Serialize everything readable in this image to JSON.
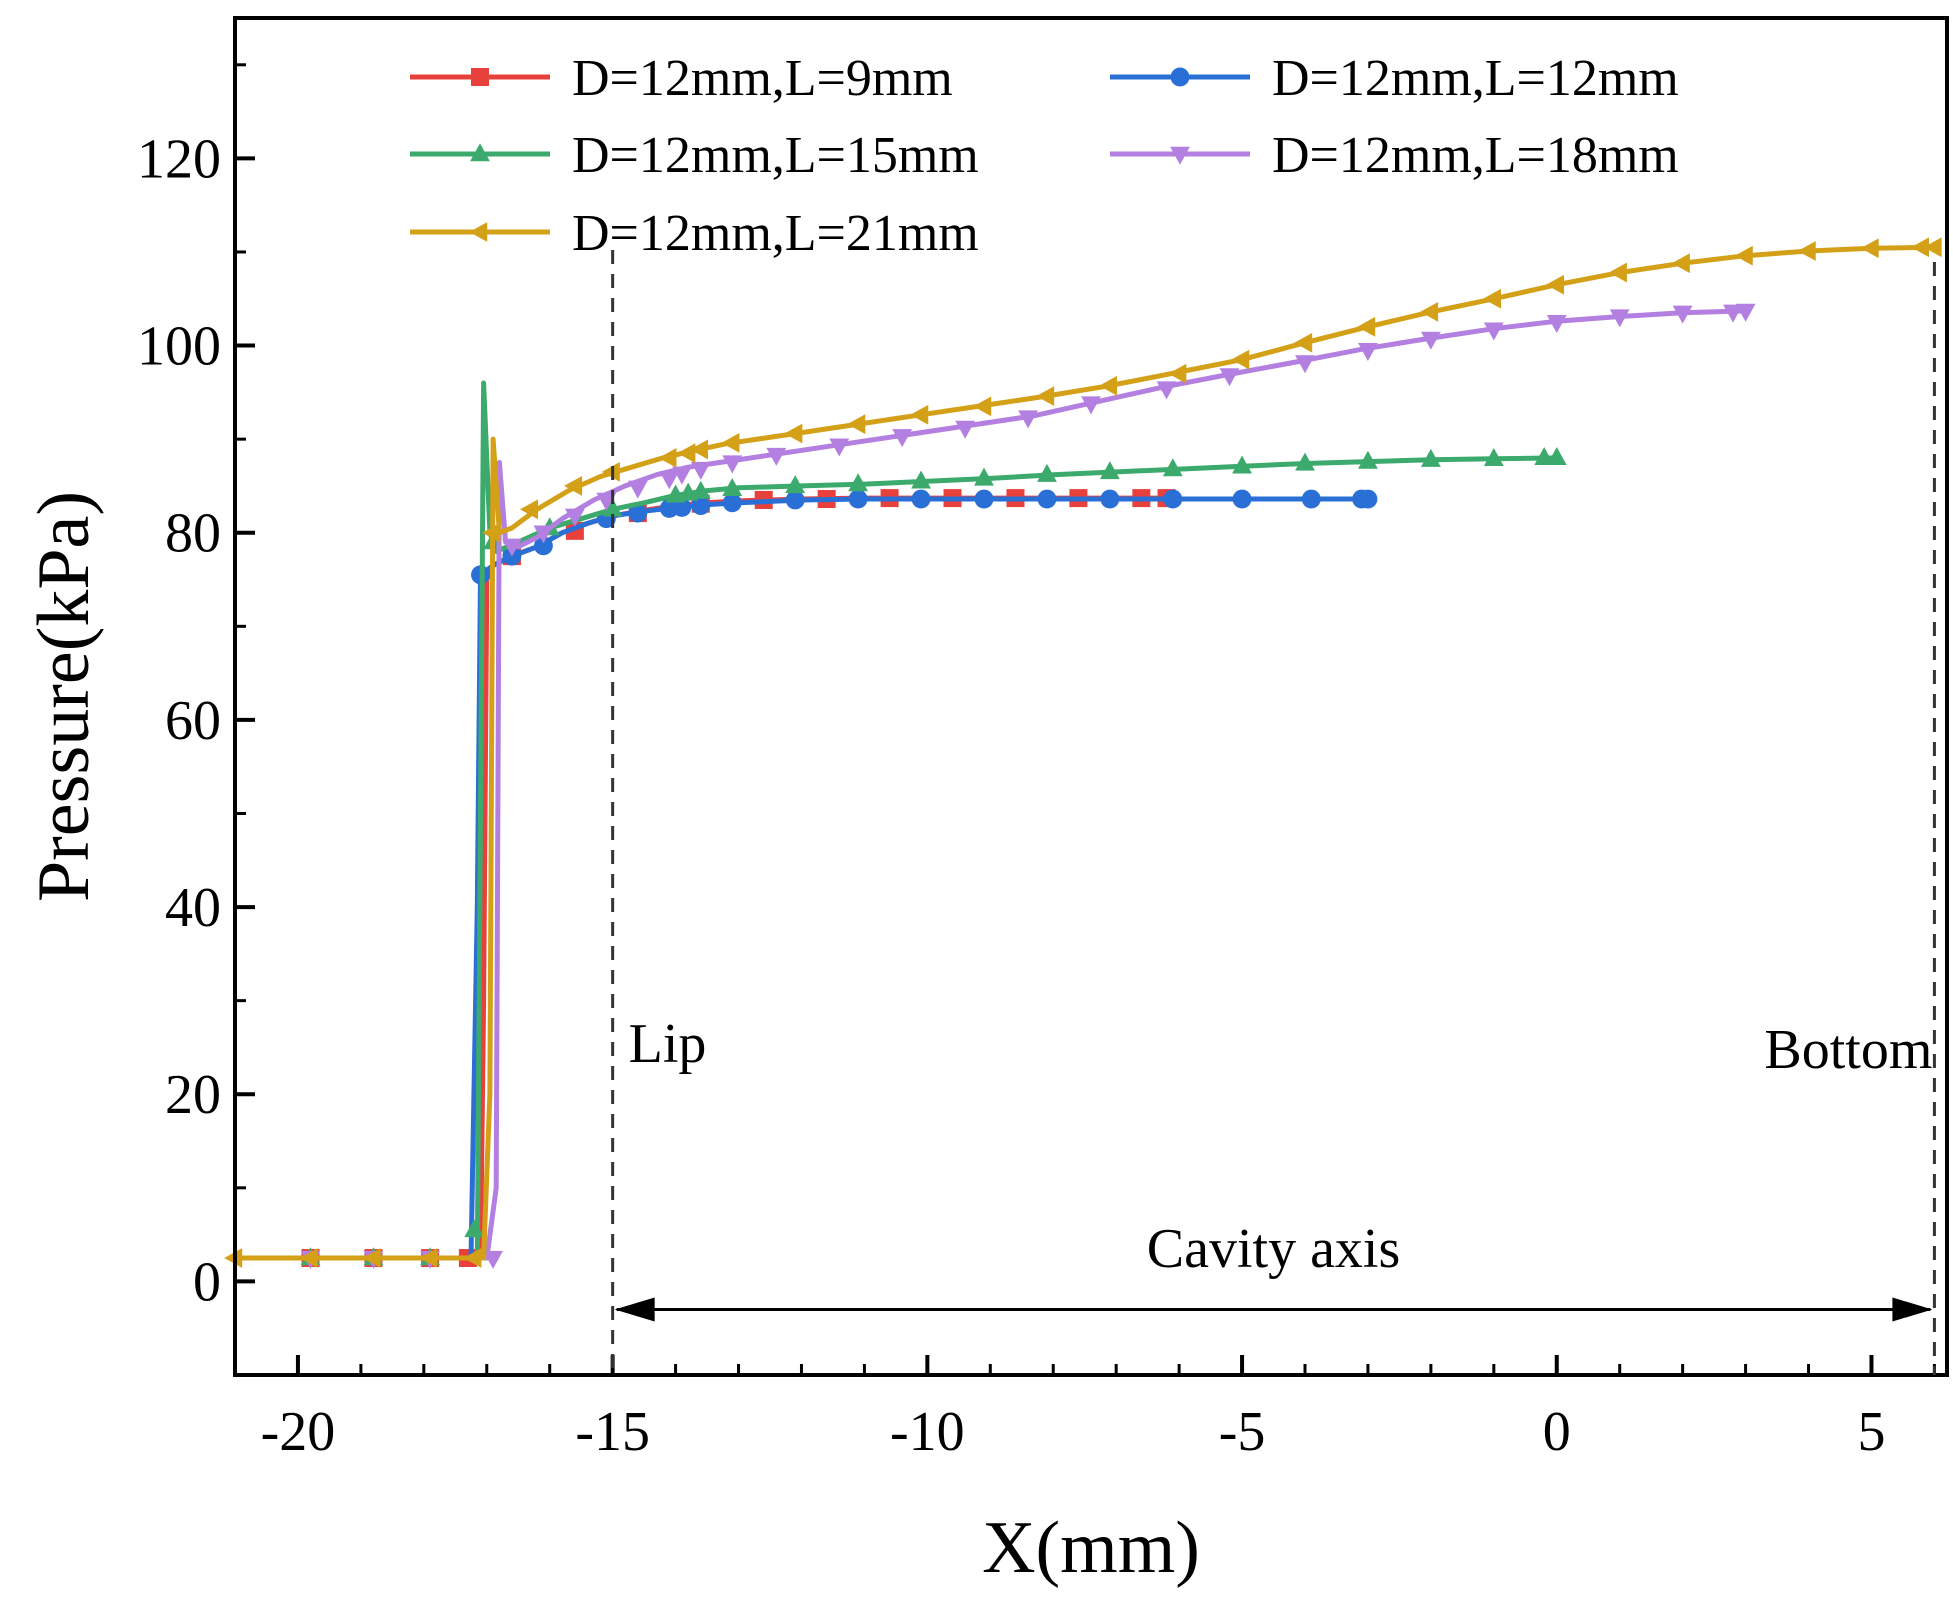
{
  "chart_data": {
    "type": "line",
    "title": "",
    "xlabel": "X(mm)",
    "ylabel": "Pressure(kPa)",
    "xlim": [
      -21,
      6.2
    ],
    "ylim": [
      -10,
      135
    ],
    "xticks": [
      -20,
      -15,
      -10,
      -5,
      0,
      5
    ],
    "yticks": [
      0,
      20,
      40,
      60,
      80,
      100,
      120
    ],
    "xtick_labels": [
      "-20",
      "-15",
      "-10",
      "-5",
      "0",
      "5"
    ],
    "ytick_labels": [
      "0",
      "20",
      "40",
      "60",
      "80",
      "100",
      "120"
    ],
    "legend_position": "top",
    "grid": false,
    "series": [
      {
        "name": "D=12mm,L=9mm",
        "color": "#e8413c",
        "marker": "square",
        "x": [
          -21,
          -19.8,
          -18.8,
          -17.9,
          -17.3,
          -17.1,
          -17.05,
          -17.0,
          -16.9,
          -16.6,
          -16.2,
          -15.8,
          -15.4,
          -15.0,
          -14.5,
          -14.0,
          -13.5,
          -13.0,
          -12.0,
          -11.0,
          -10.0,
          -9.0,
          -8.0,
          -7.0,
          -6.0
        ],
        "y": [
          2.5,
          2.5,
          2.5,
          2.5,
          2.5,
          2.5,
          30,
          75,
          76.5,
          77.5,
          78.5,
          80,
          81,
          81.8,
          82.4,
          82.9,
          83.2,
          83.4,
          83.6,
          83.7,
          83.7,
          83.7,
          83.7,
          83.7,
          83.7
        ],
        "marker_x": [
          -19.8,
          -18.8,
          -17.9,
          -17.3,
          -16.6,
          -15.6,
          -14.6,
          -13.6,
          -12.6,
          -11.6,
          -10.6,
          -9.6,
          -8.6,
          -7.6,
          -6.6,
          -6.2
        ],
        "marker_y": [
          2.5,
          2.5,
          2.5,
          2.5,
          77.5,
          80.2,
          82.1,
          83.1,
          83.5,
          83.6,
          83.7,
          83.7,
          83.7,
          83.7,
          83.7,
          83.7
        ]
      },
      {
        "name": "D=12mm,L=12mm",
        "color": "#2a6fd6",
        "marker": "circle",
        "x": [
          -21,
          -19.8,
          -18.8,
          -17.9,
          -17.25,
          -17.15,
          -17.1,
          -16.9,
          -16.6,
          -16.2,
          -15.8,
          -15.4,
          -15.0,
          -14.5,
          -14.0,
          -13.5,
          -13.0,
          -12.0,
          -11.0,
          -10.0,
          -9.0,
          -8.0,
          -7.0,
          -6.0,
          -5.0,
          -4.0,
          -3.0
        ],
        "y": [
          2.5,
          2.5,
          2.5,
          2.5,
          2.5,
          40,
          75.5,
          76.5,
          77.5,
          78.5,
          80,
          81,
          81.8,
          82.3,
          82.7,
          83,
          83.2,
          83.5,
          83.6,
          83.6,
          83.6,
          83.6,
          83.6,
          83.6,
          83.6,
          83.6,
          83.6
        ],
        "marker_x": [
          -17.1,
          -16.6,
          -16.1,
          -15.1,
          -14.6,
          -14.1,
          -13.9,
          -13.6,
          -13.1,
          -12.1,
          -11.1,
          -10.1,
          -9.1,
          -8.1,
          -7.1,
          -6.1,
          -5.0,
          -3.9,
          -3.1,
          -3.0
        ],
        "marker_y": [
          75.5,
          77.5,
          78.6,
          81.5,
          82.1,
          82.6,
          82.7,
          82.9,
          83.2,
          83.5,
          83.6,
          83.6,
          83.6,
          83.6,
          83.6,
          83.6,
          83.6,
          83.6,
          83.6,
          83.6
        ]
      },
      {
        "name": "D=12mm,L=15mm",
        "color": "#3daa6d",
        "marker": "triangle-up",
        "x": [
          -21,
          -19.8,
          -18.8,
          -17.9,
          -17.15,
          -17.05,
          -16.95,
          -16.85,
          -16.5,
          -16.0,
          -15.5,
          -15.0,
          -14.5,
          -14.0,
          -13.5,
          -13.0,
          -12.0,
          -11.0,
          -10.0,
          -9.0,
          -8.0,
          -7.0,
          -6.0,
          -5.0,
          -4.0,
          -3.0,
          -2.0,
          -1.0,
          0.0
        ],
        "y": [
          2.5,
          2.5,
          2.5,
          2.5,
          2.5,
          96,
          80,
          78,
          79,
          80.5,
          81.5,
          82.5,
          83.2,
          84,
          84.5,
          84.8,
          85,
          85.2,
          85.5,
          85.8,
          86.2,
          86.5,
          86.8,
          87.1,
          87.4,
          87.6,
          87.8,
          87.9,
          88.0
        ],
        "marker_x": [
          -19.8,
          -18.8,
          -17.9,
          -17.2,
          -16.9,
          -16.0,
          -15.0,
          -14.0,
          -13.8,
          -13.6,
          -13.1,
          -12.1,
          -11.1,
          -10.1,
          -9.1,
          -8.1,
          -7.1,
          -6.1,
          -5.0,
          -4.0,
          -3.0,
          -2.0,
          -1.0,
          -0.2,
          0.0
        ],
        "marker_y": [
          2.5,
          2.5,
          2.5,
          5.5,
          79,
          80.5,
          82.5,
          84,
          84.2,
          84.4,
          84.7,
          85,
          85.2,
          85.5,
          85.8,
          86.2,
          86.5,
          86.8,
          87.1,
          87.4,
          87.6,
          87.8,
          87.9,
          88.0,
          88.0
        ]
      },
      {
        "name": "D=12mm,L=18mm",
        "color": "#b37fe0",
        "marker": "triangle-down",
        "x": [
          -21,
          -19.8,
          -18.8,
          -17.9,
          -17.0,
          -16.85,
          -16.8,
          -16.7,
          -16.5,
          -16.2,
          -15.8,
          -15.3,
          -14.8,
          -14.3,
          -13.8,
          -13.3,
          -12.3,
          -11.3,
          -10.3,
          -9.3,
          -8.3,
          -7.3,
          -6.3,
          -5.3,
          -4.1,
          -3.1,
          -2.0,
          -1.0,
          0.0,
          1.0,
          2.0,
          3.0
        ],
        "y": [
          2.5,
          2.5,
          2.5,
          2.5,
          2.5,
          10,
          87.5,
          79,
          78.5,
          79.5,
          81.5,
          83.5,
          85,
          86.2,
          87,
          87.5,
          88.5,
          89.5,
          90.5,
          91.5,
          92.5,
          94,
          95.5,
          96.8,
          98.3,
          99.6,
          100.8,
          101.8,
          102.6,
          103.1,
          103.5,
          103.7
        ],
        "marker_x": [
          -19.8,
          -18.8,
          -17.9,
          -16.9,
          -16.6,
          -16.1,
          -15.6,
          -15.1,
          -14.6,
          -14.1,
          -13.9,
          -13.6,
          -13.1,
          -12.4,
          -11.4,
          -10.4,
          -9.4,
          -8.4,
          -7.4,
          -6.2,
          -5.2,
          -4.0,
          -3.0,
          -2.0,
          -1.0,
          0.0,
          1.0,
          2.0,
          2.8,
          3.0
        ],
        "marker_y": [
          2.5,
          2.5,
          2.5,
          2.5,
          78.6,
          80,
          81.8,
          83.5,
          84.8,
          85.8,
          86.3,
          86.8,
          87.5,
          88.3,
          89.3,
          90.3,
          91.2,
          92.3,
          93.8,
          95.4,
          96.8,
          98.2,
          99.5,
          100.7,
          101.7,
          102.5,
          103.1,
          103.5,
          103.6,
          103.7
        ]
      },
      {
        "name": "D=12mm,L=21mm",
        "color": "#d4a017",
        "marker": "triangle-left",
        "x": [
          -21,
          -19.8,
          -18.8,
          -17.9,
          -17.05,
          -16.95,
          -16.9,
          -16.8,
          -16.6,
          -16.2,
          -15.7,
          -15.2,
          -14.7,
          -14.2,
          -13.7,
          -13.2,
          -12.2,
          -11.2,
          -10.2,
          -9.2,
          -8.2,
          -7.2,
          -6.2,
          -5.0,
          -4.0,
          -3.0,
          -2.0,
          -1.0,
          0.0,
          1.0,
          2.0,
          3.0,
          4.0,
          5.0,
          6.0
        ],
        "y": [
          2.5,
          2.5,
          2.5,
          2.5,
          2.5,
          20,
          90,
          80,
          80.5,
          82.5,
          84.5,
          86,
          87,
          88,
          88.8,
          89.5,
          90.5,
          91.5,
          92.5,
          93.5,
          94.5,
          95.6,
          96.9,
          98.5,
          100.3,
          102,
          103.6,
          105,
          106.5,
          107.8,
          108.8,
          109.6,
          110.1,
          110.4,
          110.5
        ],
        "marker_x": [
          -21,
          -19.8,
          -18.8,
          -17.9,
          -17.2,
          -16.9,
          -16.3,
          -15.6,
          -15.0,
          -14.1,
          -13.8,
          -13.6,
          -13.1,
          -12.1,
          -11.1,
          -10.1,
          -9.1,
          -8.1,
          -7.1,
          -6.0,
          -5.0,
          -4.0,
          -3.0,
          -2.0,
          -1.0,
          0.0,
          1.0,
          2.0,
          3.0,
          4.0,
          5.0,
          5.8,
          6.0
        ],
        "marker_y": [
          2.5,
          2.5,
          2.5,
          2.5,
          2.5,
          80,
          82.5,
          85,
          86.5,
          88,
          88.5,
          88.9,
          89.6,
          90.6,
          91.6,
          92.6,
          93.5,
          94.6,
          95.7,
          97,
          98.5,
          100.3,
          102,
          103.6,
          105,
          106.5,
          107.8,
          108.8,
          109.6,
          110.1,
          110.4,
          110.5,
          110.5
        ]
      }
    ],
    "annotations": {
      "lip_label": "Lip",
      "lip_x": -15,
      "bottom_label": "Bottom",
      "bottom_x": 6.0,
      "cavity_label": "Cavity axis",
      "arrow_y": -3
    }
  }
}
